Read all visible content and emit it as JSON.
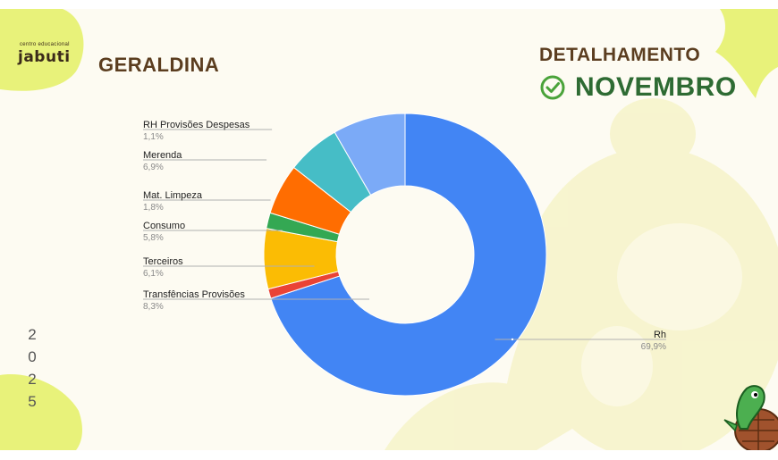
{
  "header": {
    "logo_small": "centro educacional",
    "logo_name": "jabuti",
    "company": "GERALDINA",
    "detail_label": "DETALHAMENTO",
    "month": "NOVEMBRO",
    "year_digits": [
      "2",
      "0",
      "2",
      "5"
    ]
  },
  "colors": {
    "brown": "#5b3d1f",
    "green": "#2e6b33",
    "accent_green": "#4aa33a",
    "leaf": "#e8f27a"
  },
  "icons": [
    "check-circle-icon",
    "turtle-icon"
  ],
  "chart_data": {
    "type": "pie",
    "donut": true,
    "title": "",
    "slices": [
      {
        "label": "Rh",
        "value": 69.9,
        "display": "69,9%",
        "color": "#4285f4",
        "label_side": "right"
      },
      {
        "label": "RH Provisões Despesas",
        "value": 1.1,
        "display": "1,1%",
        "color": "#ea4335",
        "label_side": "left"
      },
      {
        "label": "Merenda",
        "value": 6.9,
        "display": "6,9%",
        "color": "#fbbc04",
        "label_side": "left"
      },
      {
        "label": "Mat. Limpeza",
        "value": 1.8,
        "display": "1,8%",
        "color": "#34a853",
        "label_side": "left"
      },
      {
        "label": "Consumo",
        "value": 5.8,
        "display": "5,8%",
        "color": "#ff6d01",
        "label_side": "left"
      },
      {
        "label": "Terceiros",
        "value": 6.1,
        "display": "6,1%",
        "color": "#46bdc6",
        "label_side": "left"
      },
      {
        "label": "Transfências Provisões",
        "value": 8.3,
        "display": "8,3%",
        "color": "#7baaf7",
        "label_side": "left"
      }
    ]
  }
}
